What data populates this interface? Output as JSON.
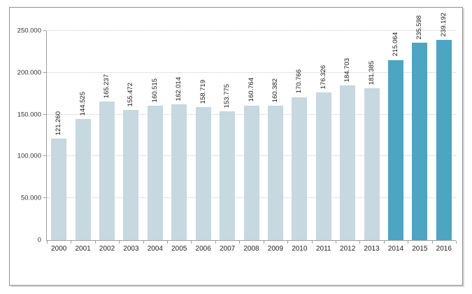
{
  "chart_data": {
    "type": "bar",
    "title": "",
    "xlabel": "",
    "ylabel": "",
    "categories": [
      "2000",
      "2001",
      "2002",
      "2003",
      "2004",
      "2005",
      "2006",
      "2007",
      "2008",
      "2009",
      "2010",
      "2011",
      "2012",
      "2013",
      "2014",
      "2015",
      "2016"
    ],
    "values": [
      121260,
      144525,
      165237,
      155472,
      160515,
      162014,
      158719,
      153775,
      160764,
      160382,
      170766,
      176326,
      184703,
      181385,
      215064,
      235598,
      239192
    ],
    "value_labels": [
      "121.260",
      "144.525",
      "165.237",
      "155.472",
      "160.515",
      "162.014",
      "158.719",
      "153.775",
      "160.764",
      "160.382",
      "170.766",
      "176.326",
      "184.703",
      "181.385",
      "215.064",
      "235.598",
      "239.192"
    ],
    "ylim": [
      0,
      250000
    ],
    "ytick_interval": 50000,
    "ytick_labels": [
      "0",
      "50.000",
      "100.000",
      "150.000",
      "200.000",
      "250.000"
    ],
    "grid": "horizontal-dotted",
    "legend": "none",
    "highlight_from_index": 14,
    "colors": {
      "bar_default": "#c6d8e0",
      "bar_highlight": "#4ba5c3",
      "gridline": "#c9c9c9",
      "axis": "#9d9d9d",
      "text": "#1a1a1a",
      "frame_border": "#8f8f8f"
    }
  }
}
